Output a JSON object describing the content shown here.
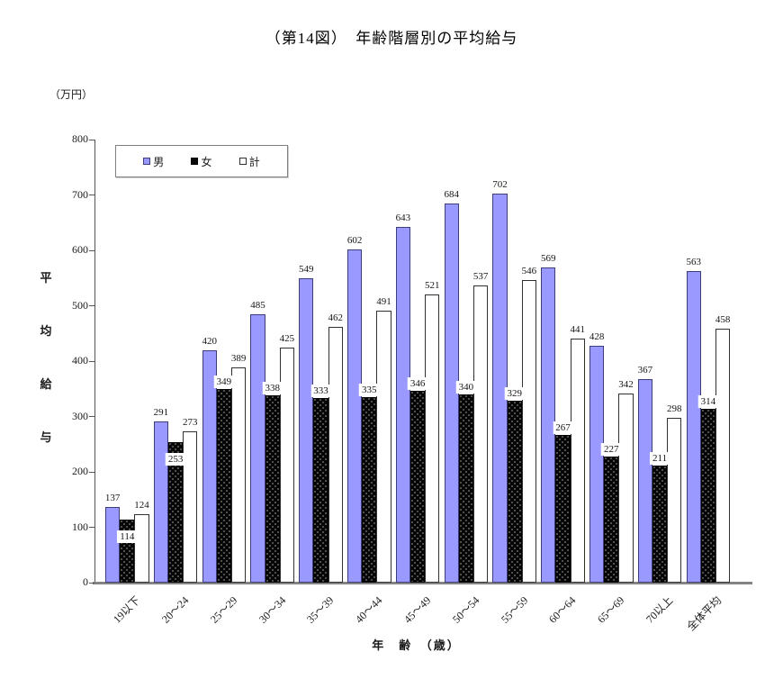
{
  "title": "（第14図）　年齢階層別の平均給与",
  "unit_label": "（万円）",
  "y_axis_label": "平均給与",
  "x_axis_label": "年　齢　（歳）",
  "legend": [
    {
      "label": "男",
      "color": "#9999ff"
    },
    {
      "label": "女",
      "color": "#0a0a0a"
    },
    {
      "label": "計",
      "color": "#ffffff"
    }
  ],
  "colors": {
    "male_fill": "#9999ff",
    "male_border": "#3d3d7a",
    "female_fill": "#060606",
    "total_fill": "#ffffff",
    "total_border": "#303030",
    "axis": "#555555",
    "baseline": "#848484"
  },
  "chart_data": {
    "type": "bar",
    "categories": [
      "19以下",
      "20〜24",
      "25〜29",
      "30〜34",
      "35〜39",
      "40〜44",
      "45〜49",
      "50〜54",
      "55〜59",
      "60〜64",
      "65〜69",
      "70以上",
      "全体平均"
    ],
    "series": [
      {
        "name": "男",
        "values": [
          137,
          291,
          420,
          485,
          549,
          602,
          643,
          684,
          702,
          569,
          428,
          367,
          563
        ]
      },
      {
        "name": "女",
        "values": [
          114,
          253,
          349,
          338,
          333,
          335,
          346,
          340,
          329,
          267,
          227,
          211,
          314
        ]
      },
      {
        "name": "計",
        "values": [
          124,
          273,
          389,
          425,
          462,
          491,
          521,
          537,
          546,
          441,
          342,
          298,
          458
        ]
      }
    ],
    "title": "（第14図）　年齢階層別の平均給与",
    "xlabel": "年　齢　（歳）",
    "ylabel": "平均給与",
    "y_unit": "万円",
    "ylim": [
      0,
      800
    ],
    "ytick_step": 100,
    "grid": false,
    "legend_position": "top-left",
    "data_labels": true
  }
}
